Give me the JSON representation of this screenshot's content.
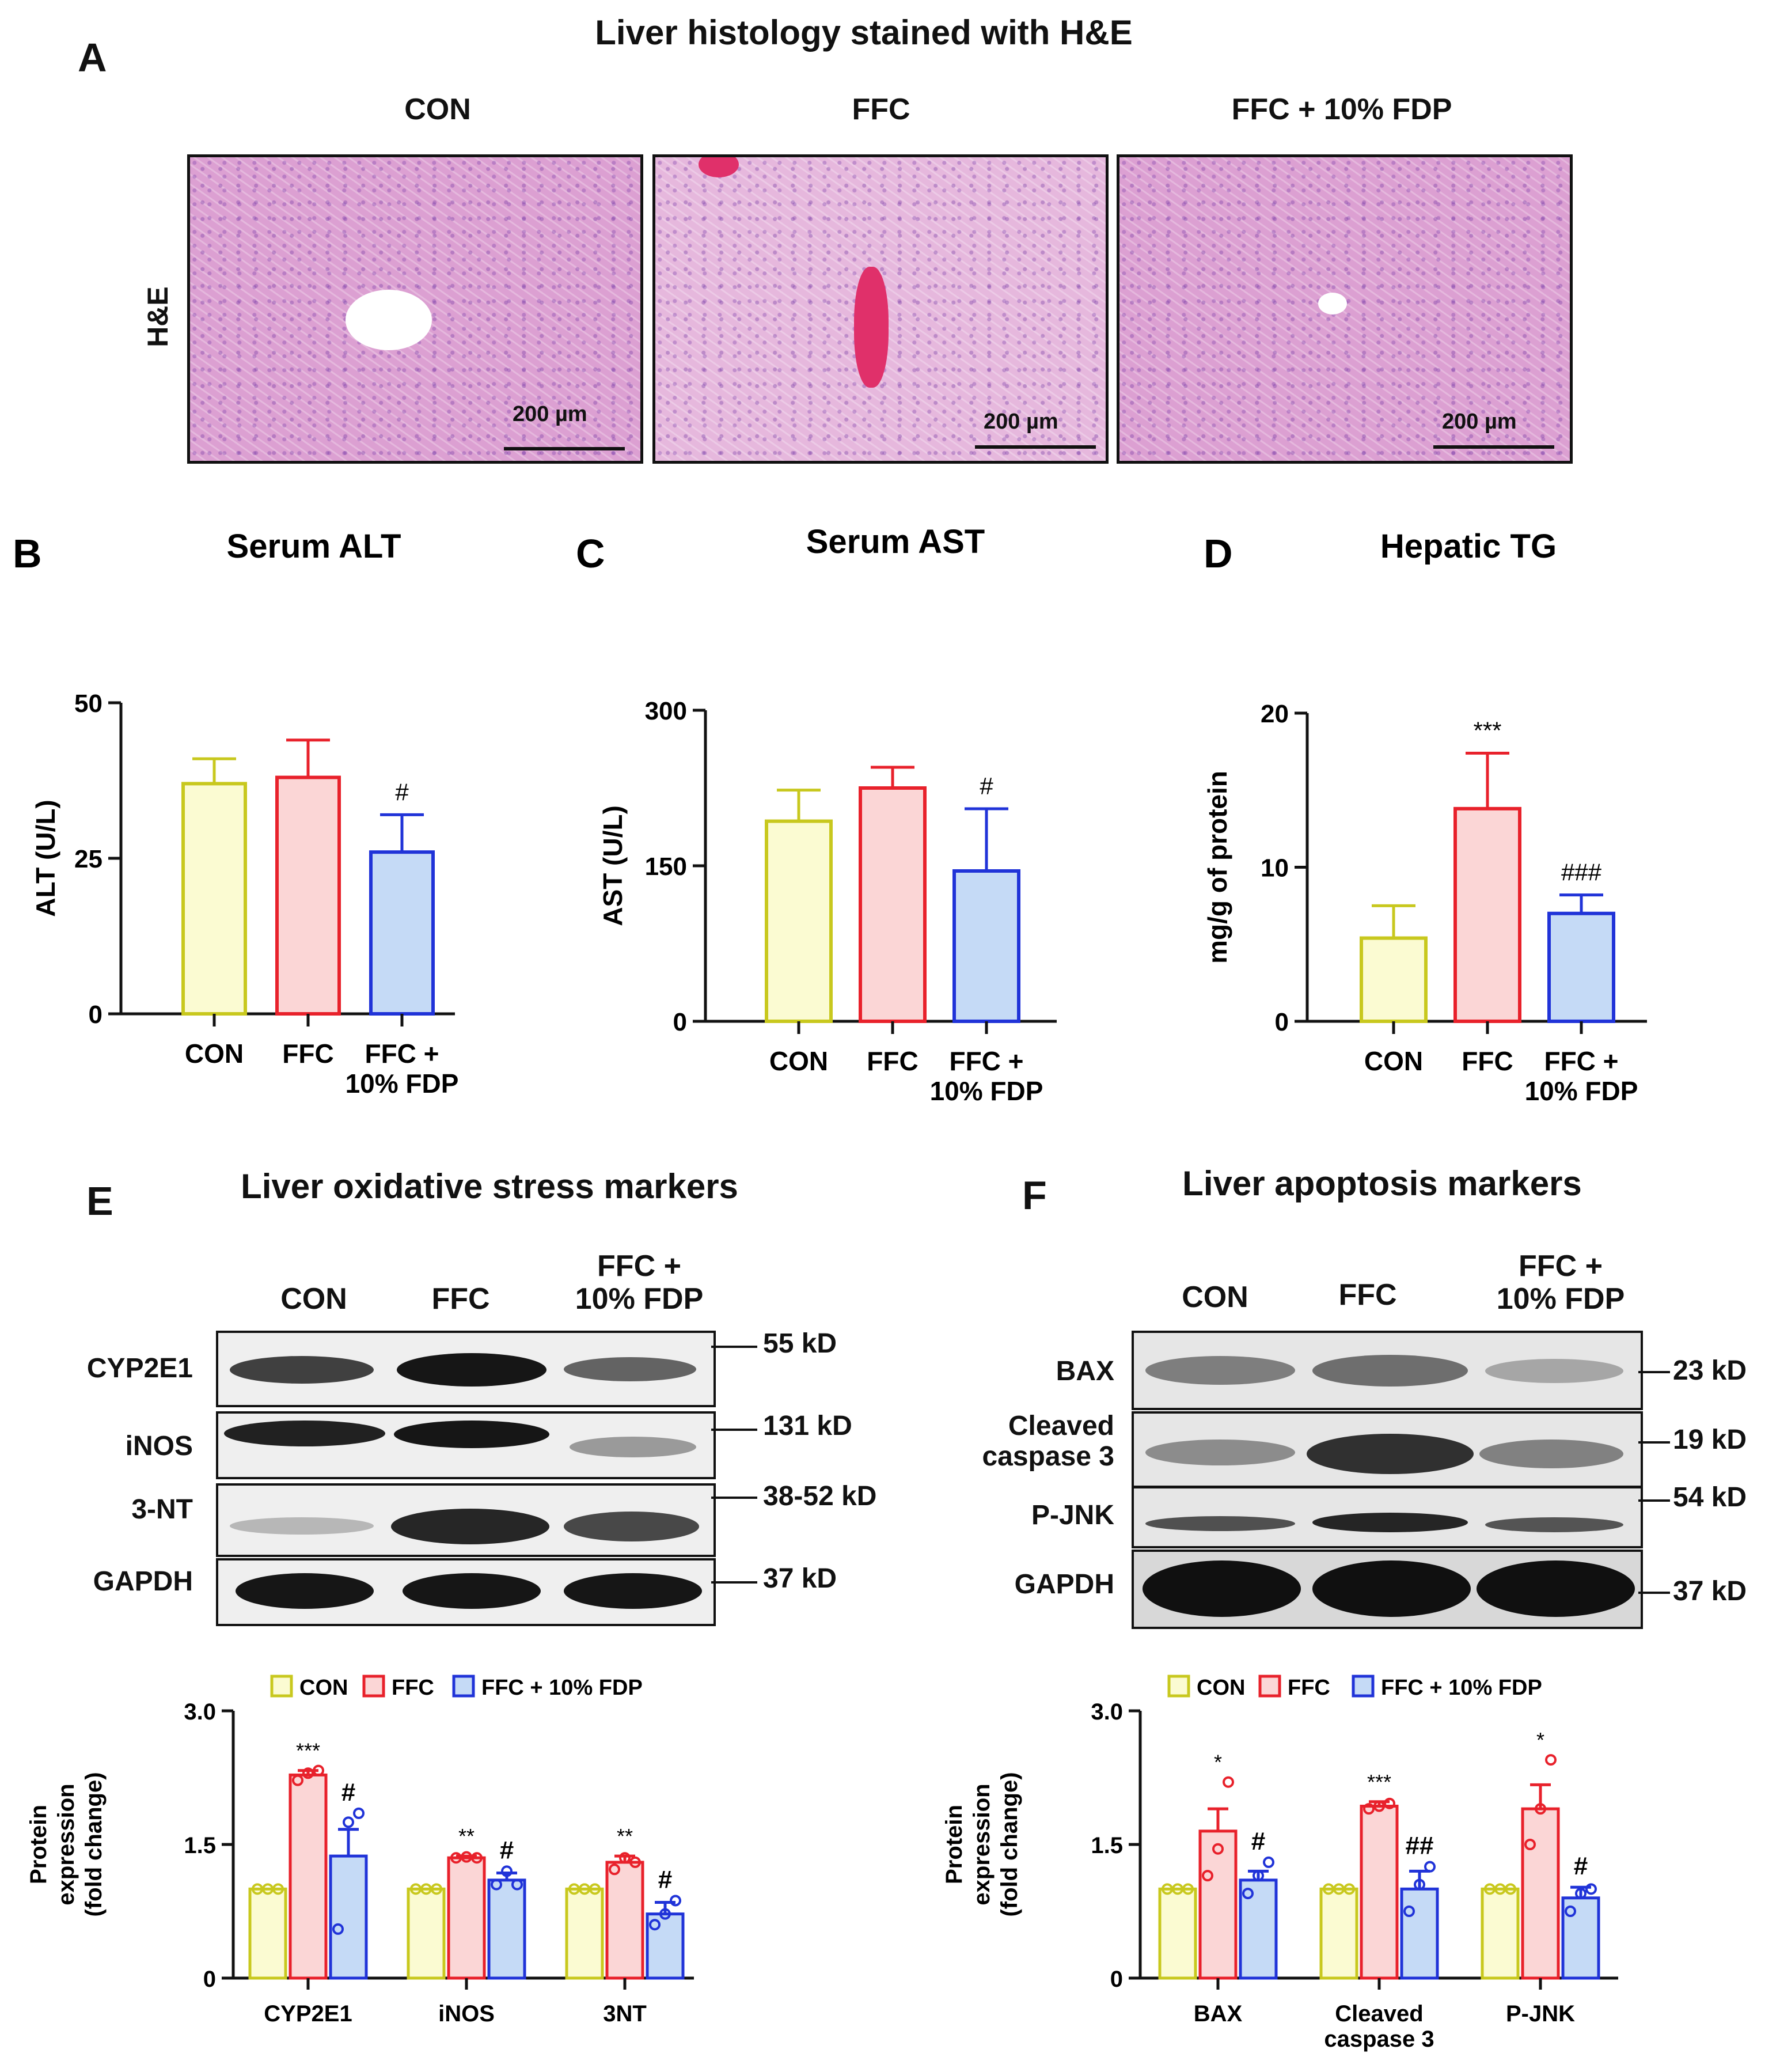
{
  "panel_a": {
    "letter": "A",
    "title": "Liver histology stained with H&E",
    "row_label": "H&E",
    "columns": [
      "CON",
      "FFC",
      "FFC + 10% FDP"
    ],
    "scale_bar": "200 µm"
  },
  "panel_e": {
    "letter": "E",
    "title": "Liver oxidative stress markers",
    "lanes": [
      "CON",
      "FFC",
      "FFC +\n10% FDP"
    ],
    "rows": [
      {
        "label": "CYP2E1",
        "kd": "55 kD"
      },
      {
        "label": "iNOS",
        "kd": "131 kD"
      },
      {
        "label": "3-NT",
        "kd": "38-52 kD"
      },
      {
        "label": "GAPDH",
        "kd": "37 kD"
      }
    ]
  },
  "panel_f": {
    "letter": "F",
    "title": "Liver apoptosis markers",
    "lanes": [
      "CON",
      "FFC",
      "FFC +\n10% FDP"
    ],
    "rows": [
      {
        "label": "BAX",
        "kd": "23 kD"
      },
      {
        "label": "Cleaved\ncaspase 3",
        "kd": "19 kD"
      },
      {
        "label": "P-JNK",
        "kd": "54 kD"
      },
      {
        "label": "GAPDH",
        "kd": "37 kD"
      }
    ]
  },
  "colors": {
    "con_edge": "#c8c81e",
    "con_fill": "#fbfbd2",
    "ffc_edge": "#e8212b",
    "ffc_fill": "#fbd6d6",
    "fdp_edge": "#2033d8",
    "fdp_fill": "#c5daf6"
  },
  "chart_data": [
    {
      "id": "B",
      "letter": "B",
      "type": "bar",
      "title": "Serum ALT",
      "ylabel": "ALT (U/L)",
      "ylim": [
        0,
        50
      ],
      "yticks": [
        "0",
        "25",
        "50"
      ],
      "categories": [
        "CON",
        "FFC",
        "FFC +\n10% FDP"
      ],
      "values": [
        37,
        38,
        26
      ],
      "errors": [
        4,
        6,
        6
      ],
      "annotations": [
        "",
        "",
        "#"
      ]
    },
    {
      "id": "C",
      "letter": "C",
      "type": "bar",
      "title": "Serum AST",
      "ylabel": "AST (U/L)",
      "ylim": [
        0,
        300
      ],
      "yticks": [
        "0",
        "150",
        "300"
      ],
      "categories": [
        "CON",
        "FFC",
        "FFC +\n10% FDP"
      ],
      "values": [
        193,
        225,
        145
      ],
      "errors": [
        30,
        20,
        60
      ],
      "annotations": [
        "",
        "",
        "#"
      ]
    },
    {
      "id": "D",
      "letter": "D",
      "type": "bar",
      "title": "Hepatic TG",
      "ylabel": "mg/g of protein",
      "ylim": [
        0,
        20
      ],
      "yticks": [
        "0",
        "10",
        "20"
      ],
      "categories": [
        "CON",
        "FFC",
        "FFC +\n10% FDP"
      ],
      "values": [
        5.4,
        13.8,
        7.0
      ],
      "errors": [
        2.1,
        3.6,
        1.2
      ],
      "annotations": [
        "",
        "***",
        "###"
      ]
    },
    {
      "id": "E",
      "type": "bar",
      "title": "",
      "ylabel": "Protein\nexpression\n(fold change)",
      "ylim": [
        0,
        3.0
      ],
      "yticks": [
        "0",
        "1.5",
        "3.0"
      ],
      "legend": [
        "CON",
        "FFC",
        "FFC + 10% FDP"
      ],
      "categories": [
        "CYP2E1",
        "iNOS",
        "3NT"
      ],
      "series": [
        {
          "name": "CON",
          "values": [
            1.0,
            1.0,
            1.0
          ],
          "errors": [
            0,
            0,
            0
          ],
          "points": [
            [
              1.0,
              1.0,
              1.0
            ],
            [
              1.0,
              1.0,
              1.0
            ],
            [
              1.0,
              1.0,
              1.0
            ]
          ],
          "annotations": [
            "",
            "",
            ""
          ]
        },
        {
          "name": "FFC",
          "values": [
            2.28,
            1.35,
            1.3
          ],
          "errors": [
            0.05,
            0.02,
            0.07
          ],
          "points": [
            [
              2.22,
              2.3,
              2.33
            ],
            [
              1.35,
              1.36,
              1.35
            ],
            [
              1.22,
              1.35,
              1.3
            ]
          ],
          "annotations": [
            "***",
            "**",
            "**"
          ]
        },
        {
          "name": "FFC + 10% FDP",
          "values": [
            1.37,
            1.1,
            0.72
          ],
          "errors": [
            0.3,
            0.08,
            0.13
          ],
          "points": [
            [
              0.55,
              1.75,
              1.85
            ],
            [
              1.05,
              1.2,
              1.05
            ],
            [
              0.6,
              0.72,
              0.87
            ]
          ],
          "annotations": [
            "#",
            "#",
            "#"
          ]
        }
      ]
    },
    {
      "id": "F",
      "type": "bar",
      "title": "",
      "ylabel": "Protein\nexpression\n(fold change)",
      "ylim": [
        0,
        3.0
      ],
      "yticks": [
        "0",
        "1.5",
        "3.0"
      ],
      "legend": [
        "CON",
        "FFC",
        "FFC + 10% FDP"
      ],
      "categories": [
        "BAX",
        "Cleaved\ncaspase 3",
        "P-JNK"
      ],
      "series": [
        {
          "name": "CON",
          "values": [
            1.0,
            1.0,
            1.0
          ],
          "errors": [
            0,
            0,
            0
          ],
          "points": [
            [
              1.0,
              1.0,
              1.0
            ],
            [
              1.0,
              1.0,
              1.0
            ],
            [
              1.0,
              1.0,
              1.0
            ]
          ],
          "annotations": [
            "",
            "",
            ""
          ]
        },
        {
          "name": "FFC",
          "values": [
            1.65,
            1.93,
            1.9
          ],
          "errors": [
            0.25,
            0.05,
            0.27
          ],
          "points": [
            [
              1.15,
              1.45,
              2.2
            ],
            [
              1.9,
              1.93,
              1.96
            ],
            [
              1.5,
              1.9,
              2.45
            ]
          ],
          "annotations": [
            "*",
            "***",
            "*"
          ]
        },
        {
          "name": "FFC + 10% FDP",
          "values": [
            1.1,
            1.0,
            0.9
          ],
          "errors": [
            0.1,
            0.2,
            0.12
          ],
          "points": [
            [
              0.95,
              1.15,
              1.3
            ],
            [
              0.75,
              1.05,
              1.25
            ],
            [
              0.75,
              0.95,
              1.0
            ]
          ],
          "annotations": [
            "#",
            "##",
            "#"
          ]
        }
      ]
    }
  ]
}
